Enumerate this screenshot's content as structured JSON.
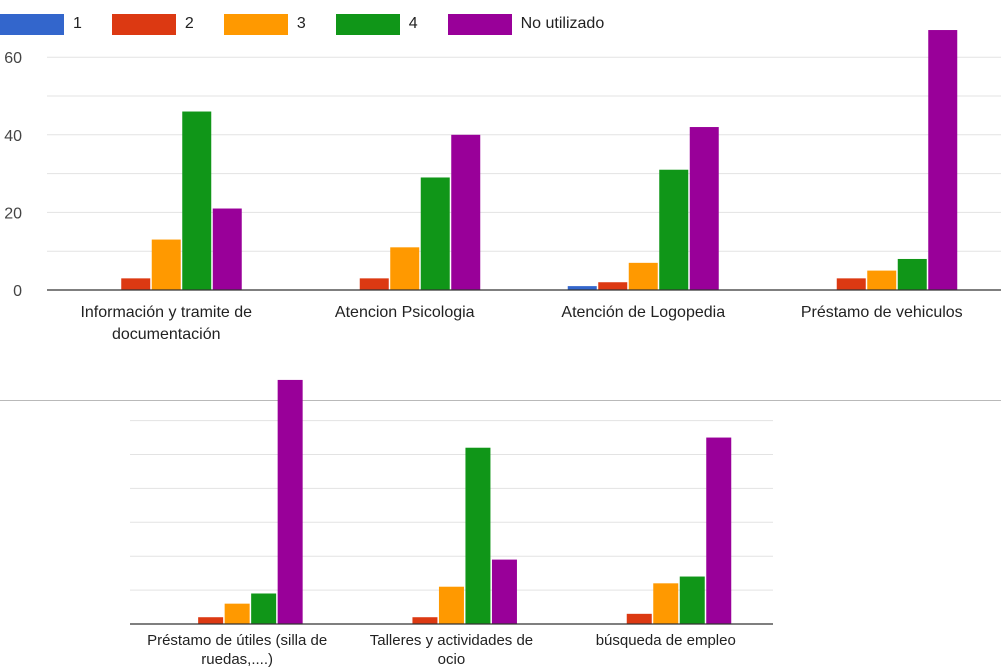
{
  "legend": {
    "items": [
      {
        "label": "1",
        "color": "#3366cc"
      },
      {
        "label": "2",
        "color": "#dc3912"
      },
      {
        "label": "3",
        "color": "#ff9900"
      },
      {
        "label": "4",
        "color": "#109618"
      },
      {
        "label": "No utilizado",
        "color": "#990099"
      }
    ]
  },
  "chart_data": [
    {
      "type": "bar",
      "categories": [
        [
          "Información y tramite de",
          "documentación"
        ],
        [
          "Atencion Psicologia"
        ],
        [
          "Atención de Logopedia"
        ],
        [
          "Préstamo de vehiculos"
        ]
      ],
      "series": [
        {
          "name": "1",
          "color": "#3366cc",
          "values": [
            0,
            0,
            1,
            0
          ]
        },
        {
          "name": "2",
          "color": "#dc3912",
          "values": [
            3,
            3,
            2,
            3
          ]
        },
        {
          "name": "3",
          "color": "#ff9900",
          "values": [
            13,
            11,
            7,
            5
          ]
        },
        {
          "name": "4",
          "color": "#109618",
          "values": [
            46,
            29,
            31,
            8
          ]
        },
        {
          "name": "No utilizado",
          "color": "#990099",
          "values": [
            21,
            40,
            42,
            67
          ]
        }
      ],
      "y_ticks": [
        "0",
        "20",
        "40",
        "60"
      ],
      "ylim": [
        0,
        70
      ],
      "grid": true,
      "legend_position": "top-left"
    },
    {
      "type": "bar",
      "categories": [
        [
          "Préstamo de útiles (silla de",
          "ruedas,....)"
        ],
        [
          "Talleres y actividades de",
          "ocio"
        ],
        [
          "búsqueda de empleo"
        ]
      ],
      "series": [
        {
          "name": "1",
          "color": "#3366cc",
          "values": [
            0,
            0,
            0
          ]
        },
        {
          "name": "2",
          "color": "#dc3912",
          "values": [
            2,
            2,
            3
          ]
        },
        {
          "name": "3",
          "color": "#ff9900",
          "values": [
            6,
            11,
            12
          ]
        },
        {
          "name": "4",
          "color": "#109618",
          "values": [
            9,
            52,
            14
          ]
        },
        {
          "name": "No utilizado",
          "color": "#990099",
          "values": [
            72,
            19,
            55
          ]
        }
      ],
      "ylim": [
        0,
        70
      ],
      "grid": true
    }
  ]
}
